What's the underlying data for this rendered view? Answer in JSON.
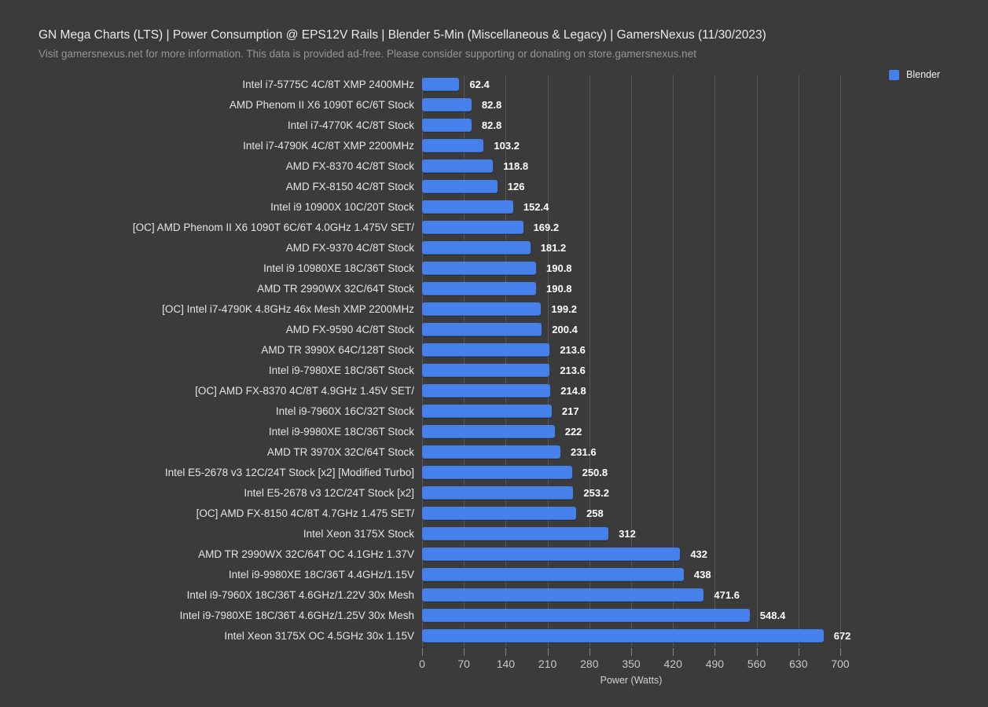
{
  "header": {
    "title": "GN Mega Charts (LTS) | Power Consumption @ EPS12V Rails | Blender 5-Min (Miscellaneous & Legacy) | GamersNexus (11/30/2023)",
    "subtitle": "Visit gamersnexus.net for more information. This data is provided ad-free. Please consider supporting or donating on store.gamersnexus.net"
  },
  "legend": {
    "position": "top-right",
    "items": [
      {
        "label": "Blender",
        "color": "#4680eb"
      }
    ]
  },
  "colors": {
    "background": "#3b3b3b",
    "bar": "#4680eb",
    "gridline": "#575757",
    "title_text": "#eaeaea",
    "subtitle_text": "#959595",
    "category_text": "#e4e4e4",
    "value_text": "#ffffff",
    "tick_text": "#c9c9c9"
  },
  "chart_data": {
    "type": "bar",
    "orientation": "horizontal",
    "title": "GN Mega Charts (LTS) | Power Consumption @ EPS12V Rails | Blender 5-Min (Miscellaneous & Legacy) | GamersNexus (11/30/2023)",
    "xlabel": "Power (Watts)",
    "ylabel": "",
    "xlim": [
      0,
      700
    ],
    "xticks": [
      0,
      70,
      140,
      210,
      280,
      350,
      420,
      490,
      560,
      630,
      700
    ],
    "grid": true,
    "legend_position": "top-right",
    "series_name": "Blender",
    "categories": [
      "Intel i7-5775C 4C/8T XMP 2400MHz",
      "AMD Phenom II X6 1090T 6C/6T Stock",
      "Intel i7-4770K 4C/8T Stock",
      "Intel i7-4790K 4C/8T XMP 2200MHz",
      "AMD FX-8370 4C/8T Stock",
      "AMD FX-8150 4C/8T Stock",
      "Intel i9 10900X 10C/20T Stock",
      "[OC] AMD Phenom II X6 1090T 6C/6T 4.0GHz 1.475V SET/",
      "AMD FX-9370 4C/8T Stock",
      "Intel i9 10980XE 18C/36T Stock",
      "AMD TR 2990WX 32C/64T Stock",
      "[OC] Intel i7-4790K 4.8GHz 46x Mesh XMP 2200MHz",
      "AMD FX-9590 4C/8T Stock",
      "AMD TR 3990X 64C/128T Stock",
      "Intel i9-7980XE 18C/36T Stock",
      "[OC] AMD FX-8370 4C/8T 4.9GHz 1.45V SET/",
      "Intel i9-7960X 16C/32T Stock",
      "Intel i9-9980XE 18C/36T Stock",
      "AMD TR 3970X 32C/64T Stock",
      "Intel E5-2678 v3 12C/24T Stock [x2] [Modified Turbo]",
      "Intel E5-2678 v3 12C/24T Stock [x2]",
      "[OC] AMD FX-8150 4C/8T 4.7GHz 1.475 SET/",
      "Intel Xeon 3175X Stock",
      "AMD TR 2990WX 32C/64T OC 4.1GHz 1.37V",
      "Intel i9-9980XE 18C/36T 4.4GHz/1.15V",
      "Intel i9-7960X 18C/36T 4.6GHz/1.22V 30x Mesh",
      "Intel i9-7980XE 18C/36T 4.6GHz/1.25V 30x Mesh",
      "Intel Xeon 3175X OC 4.5GHz 30x 1.15V"
    ],
    "values": [
      62.4,
      82.8,
      82.8,
      103.2,
      118.8,
      126,
      152.4,
      169.2,
      181.2,
      190.8,
      190.8,
      199.2,
      200.4,
      213.6,
      213.6,
      214.8,
      217,
      222,
      231.6,
      250.8,
      253.2,
      258,
      312,
      432,
      438,
      471.6,
      548.4,
      672
    ]
  }
}
